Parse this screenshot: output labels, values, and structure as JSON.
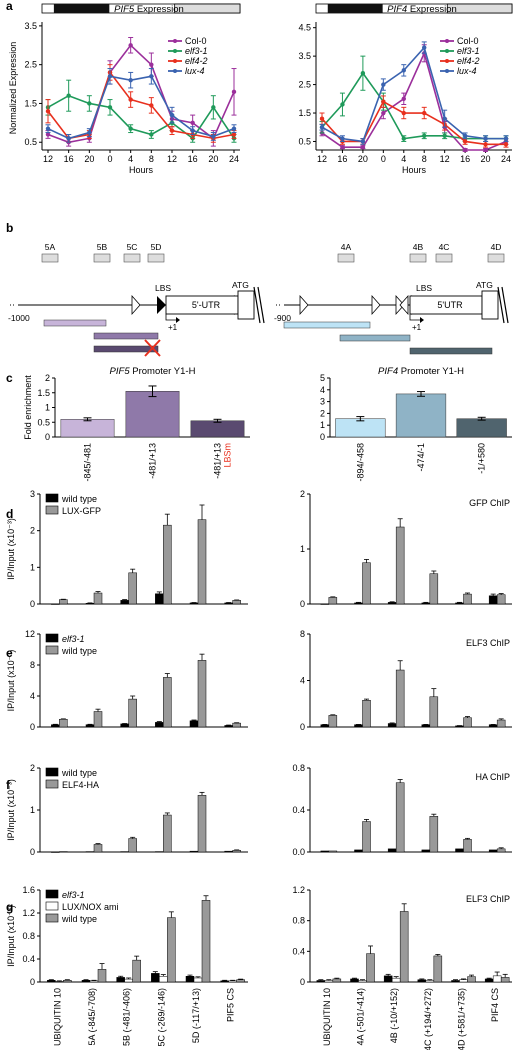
{
  "panel_labels": {
    "a": "a",
    "b": "b",
    "c": "c",
    "d": "d",
    "e": "e",
    "f": "f",
    "g": "g"
  },
  "panel_a": {
    "ylabel": "Normalized Expression",
    "xlabel": "Hours",
    "legend": [
      {
        "name": "Col-0",
        "color": "#9b2f9b"
      },
      {
        "name": "elf3-1",
        "color": "#1f9a5a"
      },
      {
        "name": "elf4-2",
        "color": "#e8301e"
      },
      {
        "name": "lux-4",
        "color": "#3a63b0"
      }
    ]
  },
  "panel_b": {
    "pif5_labels": {
      "frag": [
        "5A",
        "5B",
        "5C",
        "5D"
      ],
      "lbs": "LBS",
      "utr": "5'-UTR",
      "atg": "ATG",
      "start": "-1000",
      "plus1": "+1"
    },
    "pif4_labels": {
      "frag": [
        "4A",
        "4B",
        "4C",
        "4D"
      ],
      "lbs": "LBS",
      "utr": "5'UTR",
      "atg": "ATG",
      "start": "-900",
      "plus1": "+1"
    }
  },
  "chart_data": [
    {
      "type": "line",
      "title": "PIF5 Expression",
      "xlabel": "Hours",
      "ylabel": "Normalized Expression",
      "x": [
        12,
        16,
        20,
        0,
        4,
        8,
        12,
        16,
        20,
        24
      ],
      "ylim": [
        0.3,
        3.6
      ],
      "yticks": [
        "0.5",
        "1.5",
        "2.5",
        "3.5"
      ],
      "series": [
        {
          "name": "Col-0",
          "color": "#9b2f9b",
          "values": [
            0.7,
            0.5,
            0.6,
            2.3,
            3.0,
            2.5,
            1.1,
            1.0,
            0.6,
            1.8
          ],
          "err": [
            0.1,
            0.1,
            0.1,
            0.3,
            0.2,
            0.3,
            0.2,
            0.2,
            0.2,
            0.6
          ]
        },
        {
          "name": "elf3-1",
          "color": "#1f9a5a",
          "values": [
            1.4,
            1.7,
            1.5,
            1.4,
            0.85,
            0.7,
            1.0,
            0.6,
            1.4,
            0.6
          ],
          "err": [
            0.2,
            0.4,
            0.2,
            0.2,
            0.1,
            0.1,
            0.2,
            0.1,
            0.3,
            0.1
          ]
        },
        {
          "name": "elf4-2",
          "color": "#e8301e",
          "values": [
            1.3,
            0.6,
            0.7,
            2.3,
            1.6,
            1.45,
            0.8,
            0.7,
            0.6,
            0.7
          ],
          "err": [
            0.3,
            0.1,
            0.1,
            0.2,
            0.2,
            0.2,
            0.1,
            0.1,
            0.1,
            0.1
          ]
        },
        {
          "name": "lux-4",
          "color": "#3a63b0",
          "values": [
            0.85,
            0.6,
            0.75,
            2.2,
            2.1,
            2.2,
            1.2,
            0.8,
            0.65,
            0.85
          ],
          "err": [
            0.1,
            0.1,
            0.1,
            0.2,
            0.2,
            0.2,
            0.2,
            0.1,
            0.1,
            0.1
          ]
        }
      ]
    },
    {
      "type": "line",
      "title": "PIF4 Expression",
      "xlabel": "Hours",
      "x": [
        12,
        16,
        20,
        0,
        4,
        8,
        12,
        16,
        20,
        24
      ],
      "ylim": [
        0.2,
        4.7
      ],
      "yticks": [
        "0.5",
        "1.5",
        "2.5",
        "3.5",
        "4.5"
      ],
      "series": [
        {
          "name": "Col-0",
          "color": "#9b2f9b",
          "values": [
            0.8,
            0.3,
            0.3,
            1.5,
            2.0,
            3.6,
            1.0,
            0.2,
            0.2,
            0.5
          ],
          "err": [
            0.1,
            0.05,
            0.05,
            0.2,
            0.2,
            0.3,
            0.2,
            0.05,
            0.05,
            0.1
          ]
        },
        {
          "name": "elf3-1",
          "color": "#1f9a5a",
          "values": [
            1.0,
            1.8,
            2.9,
            1.9,
            0.6,
            0.7,
            0.7,
            0.6,
            0.6,
            0.6
          ],
          "err": [
            0.2,
            0.4,
            0.6,
            0.3,
            0.1,
            0.1,
            0.1,
            0.1,
            0.1,
            0.1
          ]
        },
        {
          "name": "elf4-2",
          "color": "#e8301e",
          "values": [
            1.3,
            0.5,
            0.5,
            1.9,
            1.5,
            1.5,
            1.1,
            0.5,
            0.4,
            0.4
          ],
          "err": [
            0.2,
            0.1,
            0.1,
            0.2,
            0.2,
            0.2,
            0.2,
            0.1,
            0.1,
            0.1
          ]
        },
        {
          "name": "lux-4",
          "color": "#3a63b0",
          "values": [
            1.0,
            0.6,
            0.5,
            2.5,
            3.0,
            3.8,
            1.3,
            0.7,
            0.6,
            0.6
          ],
          "err": [
            0.1,
            0.1,
            0.1,
            0.2,
            0.2,
            0.2,
            0.3,
            0.1,
            0.1,
            0.1
          ]
        }
      ]
    },
    {
      "type": "bar",
      "title": "PIF5 Promoter Y1-H",
      "ylabel": "Fold enrichment",
      "categories": [
        "-845/-481",
        "-481/+13",
        "-481/+13"
      ],
      "sublabels": [
        "",
        "",
        "LBSm"
      ],
      "values": [
        0.6,
        1.55,
        0.55
      ],
      "err": [
        0.05,
        0.18,
        0.05
      ],
      "colors": [
        "#c7b4d9",
        "#8f79a9",
        "#5a4a70"
      ],
      "ylim": [
        0,
        2
      ],
      "yticks": [
        "0",
        "0.5",
        "1",
        "1.5",
        "2"
      ]
    },
    {
      "type": "bar",
      "title": "PIF4 Promoter Y1-H",
      "categories": [
        "-894/-458",
        "-474/-1",
        "-1/+580"
      ],
      "values": [
        1.55,
        3.65,
        1.55
      ],
      "err": [
        0.18,
        0.2,
        0.12
      ],
      "colors": [
        "#bde3f5",
        "#8fb3c6",
        "#50646e"
      ],
      "ylim": [
        0,
        5
      ],
      "yticks": [
        "0",
        "1",
        "2",
        "3",
        "4",
        "5"
      ]
    },
    {
      "type": "bar",
      "panel": "d-left",
      "ylabel": "IP/Input (x10⁻³)",
      "series": [
        {
          "name": "wild type",
          "color": "#000000",
          "values": [
            0,
            0.02,
            0.1,
            0.28,
            0.03,
            0.03
          ]
        },
        {
          "name": "LUX-GFP",
          "color": "#999999",
          "values": [
            0.12,
            0.3,
            0.85,
            2.15,
            2.3,
            0.1
          ]
        }
      ],
      "err": [
        [
          0,
          0.01,
          0.02,
          0.05,
          0.01,
          0.01
        ],
        [
          0.01,
          0.04,
          0.1,
          0.3,
          0.4,
          0.01
        ]
      ],
      "ylim": [
        0,
        3
      ],
      "yticks": [
        "0",
        "1",
        "2",
        "3"
      ]
    },
    {
      "type": "bar",
      "panel": "d-right",
      "title": "GFP ChIP",
      "series": [
        {
          "name": "wild type",
          "color": "#000000",
          "values": [
            0,
            0.02,
            0.03,
            0.02,
            0.02,
            0.15
          ]
        },
        {
          "name": "LUX-GFP",
          "color": "#999999",
          "values": [
            0.12,
            0.75,
            1.4,
            0.55,
            0.18,
            0.17
          ]
        }
      ],
      "err": [
        [
          0,
          0.01,
          0.01,
          0.01,
          0.01,
          0.03
        ],
        [
          0.01,
          0.06,
          0.15,
          0.05,
          0.02,
          0.02
        ]
      ],
      "ylim": [
        0,
        2
      ],
      "yticks": [
        "0",
        "1",
        "2"
      ]
    },
    {
      "type": "bar",
      "panel": "e-left",
      "ylabel": "IP/Input (x10⁻³)",
      "series": [
        {
          "name": "elf3-1",
          "color": "#000000",
          "values": [
            0.3,
            0.3,
            0.4,
            0.6,
            0.8,
            0.2
          ]
        },
        {
          "name": "wild type",
          "color": "#999999",
          "values": [
            1.0,
            2.0,
            3.6,
            6.4,
            8.6,
            0.5
          ]
        }
      ],
      "err": [
        [
          0.05,
          0.05,
          0.05,
          0.1,
          0.1,
          0.05
        ],
        [
          0.05,
          0.3,
          0.4,
          0.5,
          0.8,
          0.05
        ]
      ],
      "ylim": [
        0,
        12
      ],
      "yticks": [
        "0",
        "4",
        "8",
        "12"
      ]
    },
    {
      "type": "bar",
      "panel": "e-right",
      "title": "ELF3 ChIP",
      "series": [
        {
          "name": "elf3-1",
          "color": "#000000",
          "values": [
            0.2,
            0.2,
            0.3,
            0.2,
            0.1,
            0.2
          ]
        },
        {
          "name": "wild type",
          "color": "#999999",
          "values": [
            1.0,
            2.3,
            4.9,
            2.6,
            0.8,
            0.6
          ]
        }
      ],
      "err": [
        [
          0.02,
          0.02,
          0.05,
          0.02,
          0.02,
          0.02
        ],
        [
          0.05,
          0.1,
          0.8,
          0.7,
          0.1,
          0.1
        ]
      ],
      "ylim": [
        0,
        8
      ],
      "yticks": [
        "0",
        "4",
        "8"
      ]
    },
    {
      "type": "bar",
      "panel": "f-left",
      "ylabel": "IP/Input (x10⁻³)",
      "series": [
        {
          "name": "wild type",
          "color": "#000000",
          "values": [
            0,
            0.01,
            0.01,
            0.01,
            0.02,
            0.02
          ]
        },
        {
          "name": "ELF4-HA",
          "color": "#999999",
          "values": [
            0.01,
            0.18,
            0.32,
            0.88,
            1.35,
            0.04
          ]
        }
      ],
      "err": [
        [
          0,
          0,
          0,
          0,
          0,
          0
        ],
        [
          0,
          0.02,
          0.03,
          0.05,
          0.07,
          0.01
        ]
      ],
      "ylim": [
        0,
        2
      ],
      "yticks": [
        "0",
        "1",
        "2"
      ]
    },
    {
      "type": "bar",
      "panel": "f-right",
      "title": "HA ChIP",
      "series": [
        {
          "name": "wild type",
          "color": "#000000",
          "values": [
            0.01,
            0.02,
            0.03,
            0.02,
            0.03,
            0.02
          ]
        },
        {
          "name": "ELF4-HA",
          "color": "#999999",
          "values": [
            0.01,
            0.29,
            0.66,
            0.34,
            0.12,
            0.03
          ]
        }
      ],
      "err": [
        [
          0,
          0,
          0,
          0,
          0,
          0
        ],
        [
          0,
          0.02,
          0.03,
          0.02,
          0.01,
          0.01
        ]
      ],
      "ylim": [
        0,
        0.8
      ],
      "yticks": [
        "0.0",
        "0.4",
        "0.8"
      ]
    },
    {
      "type": "bar",
      "panel": "g-left",
      "ylabel": "IP/Input (x10⁻³)",
      "categories": [
        "UBIQUITIN 10",
        "5A (-845/-708)",
        "5B (-481/-406)",
        "5C (-269/-146)",
        "5D (-117/+13)",
        "PIF5 CS"
      ],
      "series": [
        {
          "name": "elf3-1",
          "color": "#000000",
          "values": [
            0.03,
            0.03,
            0.08,
            0.15,
            0.1,
            0.02
          ]
        },
        {
          "name": "LUX/NOX ami",
          "color": "#ffffff",
          "values": [
            0.01,
            0.02,
            0.05,
            0.1,
            0.07,
            0.02
          ]
        },
        {
          "name": "wild type",
          "color": "#999999",
          "values": [
            0.03,
            0.22,
            0.38,
            1.12,
            1.42,
            0.04
          ]
        }
      ],
      "err": [
        [
          0.01,
          0.01,
          0.02,
          0.03,
          0.02,
          0.01
        ],
        [
          0.01,
          0.01,
          0.02,
          0.03,
          0.02,
          0.01
        ],
        [
          0.01,
          0.1,
          0.07,
          0.1,
          0.08,
          0.01
        ]
      ],
      "ylim": [
        0,
        1.6
      ],
      "yticks": [
        "0",
        "0.4",
        "0.8",
        "1.2",
        "1.6"
      ]
    },
    {
      "type": "bar",
      "panel": "g-right",
      "title": "ELF3 ChIP",
      "categories": [
        "UBIQUITIN 10",
        "4A (-501/-414)",
        "4B (-10/+152)",
        "4C (+194/+272)",
        "4D (+581/+735)",
        "PIF4 CS"
      ],
      "series": [
        {
          "name": "elf3-1",
          "color": "#000000",
          "values": [
            0.02,
            0.04,
            0.08,
            0.03,
            0.02,
            0.04
          ]
        },
        {
          "name": "LUX/NOX ami",
          "color": "#ffffff",
          "values": [
            0.02,
            0.02,
            0.05,
            0.02,
            0.03,
            0.08
          ]
        },
        {
          "name": "wild type",
          "color": "#999999",
          "values": [
            0.04,
            0.37,
            0.92,
            0.34,
            0.07,
            0.06
          ]
        }
      ],
      "err": [
        [
          0.01,
          0.01,
          0.02,
          0.01,
          0.01,
          0.01
        ],
        [
          0.01,
          0.01,
          0.02,
          0.01,
          0.01,
          0.05
        ],
        [
          0.01,
          0.1,
          0.1,
          0.02,
          0.02,
          0.04
        ]
      ],
      "ylim": [
        0,
        1.2
      ],
      "yticks": [
        "0",
        "0.4",
        "0.8",
        "1.2"
      ]
    }
  ]
}
